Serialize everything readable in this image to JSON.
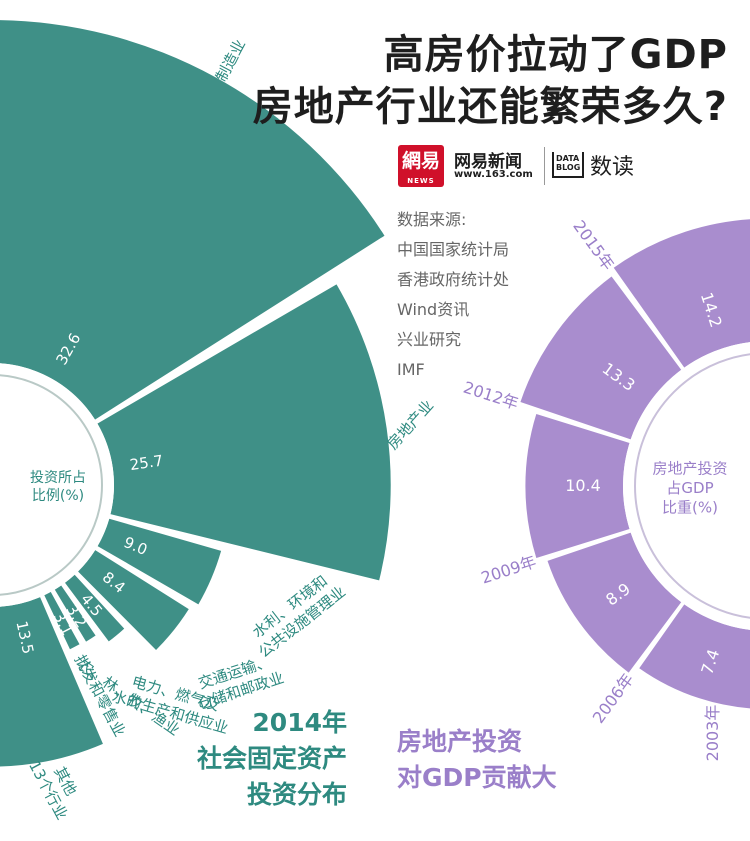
{
  "header": {
    "title_line1": "高房价拉动了GDP",
    "title_line2": "房地产行业还能繁荣多久?"
  },
  "brand": {
    "logo_text": "網易",
    "logo_sub": "NEWS",
    "name": "网易新闻",
    "url": "www.163.com",
    "datablog": "DATA BLOG",
    "column": "数读"
  },
  "sources": {
    "title": "数据来源:",
    "items": [
      "中国国家统计局",
      "香港政府统计处",
      "Wind资讯",
      "兴业研究",
      "IMF"
    ]
  },
  "colors": {
    "teal": "#3f9087",
    "teal_text": "#2e8a80",
    "purple": "#a98dce",
    "purple_text": "#9a7fc9",
    "title": "#1e1e1e"
  },
  "chart_data": [
    {
      "type": "bar",
      "layout": "radial-semicircle",
      "center_label": "投资所占\n比例(%)",
      "caption": [
        "2014年",
        "社会固定资产",
        "投资分布"
      ],
      "categories": [
        "制造业",
        "房地产业",
        "水利、环境和\n公共设施管理业",
        "交通运输、\n仓储和邮政业",
        "电力、燃气及\n水的生产和供应业",
        "农、林、牧、渔业",
        "批发和零售业",
        "其他\n13个行业"
      ],
      "values": [
        32.6,
        25.7,
        9.0,
        8.4,
        4.5,
        3.2,
        3.1,
        13.5
      ],
      "value_labels": [
        "32.6",
        "25.7",
        "9.0",
        "8.4",
        "4.5",
        "3.2",
        "3.1",
        "13.5"
      ]
    },
    {
      "type": "bar",
      "layout": "radial-semicircle",
      "center_label": "房地产投资\n占GDP\n比重(%)",
      "caption": [
        "房地产投资",
        "对GDP贡献大"
      ],
      "categories": [
        "2003年",
        "2006年",
        "2009年",
        "2012年",
        "2015年"
      ],
      "values": [
        7.4,
        8.9,
        10.4,
        13.3,
        14.2
      ],
      "value_labels": [
        "7.4",
        "8.9",
        "10.4",
        "13.3",
        "14.2"
      ]
    }
  ]
}
